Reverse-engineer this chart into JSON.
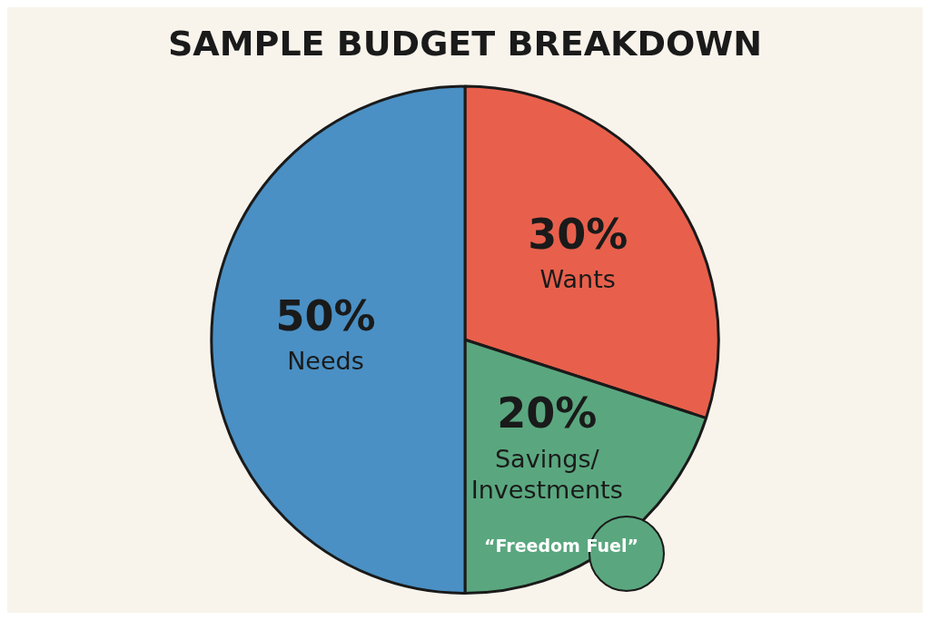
{
  "chart_data": {
    "type": "pie",
    "title": "SAMPLE BUDGET BREAKDOWN",
    "categories": [
      "Wants",
      "Savings/Investments",
      "Needs"
    ],
    "values": [
      30,
      20,
      50
    ],
    "colors": [
      "#e8604c",
      "#5aa77f",
      "#4a90c4"
    ],
    "value_labels": [
      "30%",
      "20%",
      "50%"
    ],
    "annotations": [
      "“Freedom Fuel”"
    ],
    "legend": false
  }
}
